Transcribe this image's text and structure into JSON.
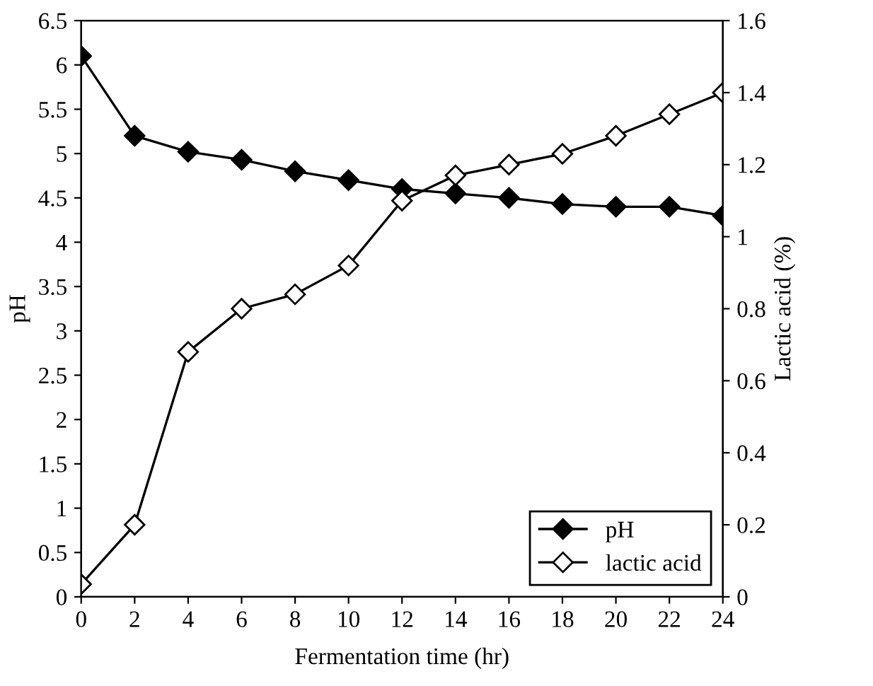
{
  "chart_data": {
    "type": "line",
    "xlabel": "Fermentation time (hr)",
    "ylabel": "pH",
    "y2label": "Lactic acid (%)",
    "x": [
      0,
      2,
      4,
      6,
      8,
      10,
      12,
      14,
      16,
      18,
      20,
      22,
      24
    ],
    "series": [
      {
        "name": "pH",
        "color": "#000000",
        "marker": "diamond",
        "values": [
          6.1,
          5.2,
          5.02,
          4.93,
          4.8,
          4.7,
          4.6,
          4.55,
          4.5,
          4.43,
          4.4,
          4.4,
          4.3
        ]
      },
      {
        "name": "lactic acid",
        "color": "#000000",
        "marker": "diamond",
        "axis": "y2",
        "values": [
          0.035,
          0.2,
          0.68,
          0.8,
          0.84,
          0.92,
          1.1,
          1.17,
          1.2,
          1.23,
          1.28,
          1.34,
          1.4
        ]
      }
    ],
    "xlim": [
      0,
      24
    ],
    "xticks": [
      0,
      2,
      4,
      6,
      8,
      10,
      12,
      14,
      16,
      18,
      20,
      22,
      24
    ],
    "ylim": [
      0,
      6.5
    ],
    "yticks": [
      0,
      0.5,
      1,
      1.5,
      2,
      2.5,
      3,
      3.5,
      4,
      4.5,
      5,
      5.5,
      6,
      6.5
    ],
    "y2lim": [
      0,
      1.6
    ],
    "y2ticks": [
      0,
      0.2,
      0.4,
      0.6,
      0.8,
      1,
      1.2,
      1.4,
      1.6
    ],
    "legend": "bottom right",
    "grid": false,
    "line_style": "solid"
  }
}
